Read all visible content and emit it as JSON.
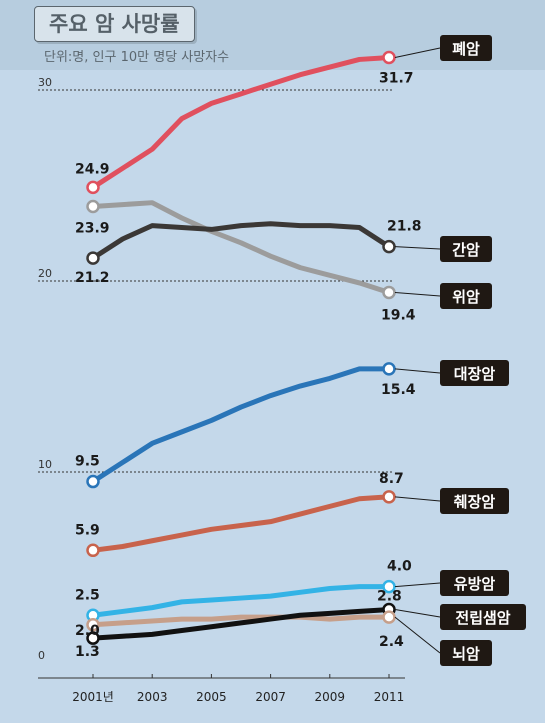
{
  "title": "주요 암 사망률",
  "unit_note": "단위:명, 인구 10만 명당 사망자수",
  "colors": {
    "background": "#c4d8ea",
    "label_bg": "#1f1813",
    "label_text": "#ffffff",
    "axis": "#333333"
  },
  "chart_data": {
    "type": "line",
    "title": "주요 암 사망률",
    "subtitle": "단위:명, 인구 10만 명당 사망자수",
    "x": [
      2001,
      2002,
      2003,
      2004,
      2005,
      2006,
      2007,
      2008,
      2009,
      2010,
      2011
    ],
    "x_ticks": [
      2001,
      2003,
      2005,
      2007,
      2009,
      2011
    ],
    "x_tick_labels": [
      "2001년",
      "2003",
      "2005",
      "2007",
      "2009",
      "2011"
    ],
    "y_ticks": [
      0,
      10,
      20,
      30
    ],
    "ylim": [
      0,
      33
    ],
    "grid": "dotted lines at 10, 20, 30",
    "series": [
      {
        "name": "폐암",
        "color": "#e0505e",
        "values": [
          24.9,
          25.9,
          26.9,
          28.5,
          29.3,
          29.8,
          30.3,
          30.8,
          31.2,
          31.6,
          31.7
        ],
        "start_label": "24.9",
        "end_label": "31.7"
      },
      {
        "name": "간암",
        "color": "#3b3836",
        "values": [
          21.2,
          22.2,
          22.9,
          22.8,
          22.7,
          22.9,
          23.0,
          22.9,
          22.9,
          22.8,
          21.8
        ],
        "start_label": "21.2",
        "end_label": "21.8"
      },
      {
        "name": "위암",
        "color": "#9c9c9c",
        "values": [
          23.9,
          24.0,
          24.1,
          23.3,
          22.6,
          22.0,
          21.3,
          20.7,
          20.3,
          19.9,
          19.4
        ],
        "start_label": "23.9",
        "end_label": "19.4"
      },
      {
        "name": "대장암",
        "color": "#2a75b8",
        "values": [
          9.5,
          10.5,
          11.5,
          12.1,
          12.7,
          13.4,
          14.0,
          14.5,
          14.9,
          15.4,
          15.4
        ],
        "start_label": "9.5",
        "end_label": "15.4"
      },
      {
        "name": "췌장암",
        "color": "#c8634c",
        "values": [
          5.9,
          6.1,
          6.4,
          6.7,
          7.0,
          7.2,
          7.4,
          7.8,
          8.2,
          8.6,
          8.7
        ],
        "start_label": "5.9",
        "end_label": "8.7"
      },
      {
        "name": "유방암",
        "color": "#33b3e6",
        "values": [
          2.5,
          2.7,
          2.9,
          3.2,
          3.3,
          3.4,
          3.5,
          3.7,
          3.9,
          4.0,
          4.0
        ],
        "start_label": "2.5",
        "end_label": "4.0"
      },
      {
        "name": "전립샘암",
        "color": "#111111",
        "values": [
          1.3,
          1.4,
          1.5,
          1.7,
          1.9,
          2.1,
          2.3,
          2.5,
          2.6,
          2.7,
          2.8
        ],
        "start_label": "1.3",
        "end_label": "2.8"
      },
      {
        "name": "뇌암",
        "color": "#c69f8a",
        "values": [
          2.0,
          2.1,
          2.2,
          2.3,
          2.3,
          2.4,
          2.4,
          2.4,
          2.3,
          2.4,
          2.4
        ],
        "start_label": "2.0",
        "end_label": "2.4"
      }
    ]
  }
}
